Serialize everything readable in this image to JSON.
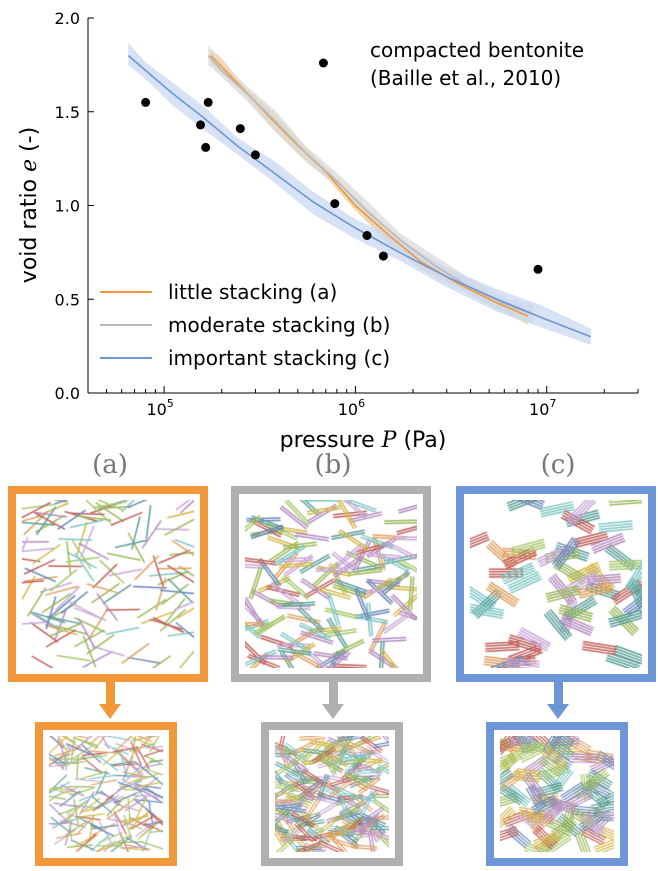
{
  "chart_data": {
    "type": "line",
    "xlabel": "pressure",
    "xlabel_var": "P",
    "xlabel_unit": "(Pa)",
    "ylabel": "void ratio",
    "ylabel_var": "e",
    "ylabel_unit": "(-)",
    "xscale": "log",
    "xlim": [
      40000,
      30000000
    ],
    "ylim": [
      0,
      2.0
    ],
    "yticks": [
      "0.0",
      "0.5",
      "1.0",
      "1.5",
      "2.0"
    ],
    "xticks": [
      {
        "base": "10",
        "exp": "5"
      },
      {
        "base": "10",
        "exp": "6"
      },
      {
        "base": "10",
        "exp": "7"
      }
    ],
    "legend_position": "lower-left",
    "series": [
      {
        "name": "little stacking (a)",
        "color": "#f0983a",
        "band_color": "#f6c98e",
        "x": [
          175000,
          200000,
          260000,
          350000,
          500000,
          700000,
          1000000,
          1500000,
          2200000,
          3500000,
          5500000,
          8000000
        ],
        "y": [
          1.8,
          1.74,
          1.62,
          1.48,
          1.32,
          1.18,
          1.0,
          0.84,
          0.7,
          0.58,
          0.48,
          0.41
        ]
      },
      {
        "name": "moderate stacking (b)",
        "color": "#b8b8b8",
        "band_color": "#d9d9d9",
        "x": [
          170000,
          200000,
          270000,
          380000,
          550000,
          800000,
          1150000,
          1700000,
          2600000,
          4000000,
          6200000,
          8500000
        ],
        "y": [
          1.8,
          1.72,
          1.6,
          1.45,
          1.28,
          1.13,
          0.97,
          0.82,
          0.68,
          0.56,
          0.47,
          0.42
        ]
      },
      {
        "name": "important stacking (c)",
        "color": "#6d96d6",
        "band_color": "#c9d8f0",
        "x": [
          65000,
          80000,
          110000,
          160000,
          240000,
          380000,
          600000,
          1000000,
          1700000,
          3000000,
          5500000,
          9500000,
          17000000
        ],
        "y": [
          1.8,
          1.72,
          1.6,
          1.47,
          1.32,
          1.17,
          1.02,
          0.88,
          0.75,
          0.62,
          0.5,
          0.4,
          0.3
        ]
      }
    ],
    "scatter": {
      "name": "compacted bentonite",
      "citation": "(Baille et al., 2010)",
      "color": "#000000",
      "x": [
        80000,
        155000,
        170000,
        165000,
        250000,
        300000,
        680000,
        780000,
        1150000,
        1400000,
        9000000
      ],
      "y": [
        1.55,
        1.43,
        1.55,
        1.31,
        1.41,
        1.27,
        1.76,
        1.01,
        0.84,
        0.73,
        0.66
      ]
    }
  },
  "panels": [
    {
      "label": "(a)",
      "color": "#f0983a"
    },
    {
      "label": "(b)",
      "color": "#b0b0b0"
    },
    {
      "label": "(c)",
      "color": "#6d96d6"
    }
  ]
}
